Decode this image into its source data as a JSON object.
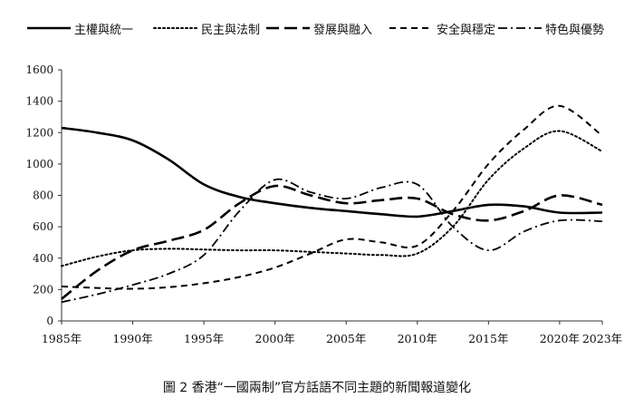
{
  "caption": "圖 2 香港“一國兩制”官方話語不同主題的新聞報道變化",
  "chart_data": {
    "type": "line",
    "title": "",
    "xlabel": "",
    "ylabel": "",
    "x": [
      1985,
      1987.5,
      1990,
      1992.5,
      1995,
      1997.5,
      2000,
      2002.5,
      2005,
      2007.5,
      2010,
      2012.5,
      2015,
      2017.5,
      2020,
      2023
    ],
    "x_ticks": [
      "1985年",
      "1990年",
      "1995年",
      "2000年",
      "2005年",
      "2010年",
      "2015年",
      "2020年",
      "2023年"
    ],
    "x_tick_values": [
      1985,
      1990,
      1995,
      2000,
      2005,
      2010,
      2015,
      2020,
      2023
    ],
    "y_ticks": [
      0,
      200,
      400,
      600,
      800,
      1000,
      1200,
      1400,
      1600
    ],
    "ylim": [
      0,
      1600
    ],
    "grid": false,
    "legend_position": "top",
    "series": [
      {
        "name": "主權與統一",
        "dash": "solid",
        "width": 2.6,
        "values": [
          1230,
          1200,
          1150,
          1030,
          870,
          790,
          750,
          720,
          700,
          680,
          665,
          700,
          740,
          730,
          690,
          690
        ]
      },
      {
        "name": "民主與法制",
        "dash": "dot",
        "width": 2.0,
        "values": [
          350,
          410,
          450,
          460,
          455,
          450,
          450,
          440,
          430,
          420,
          430,
          600,
          900,
          1100,
          1210,
          1080
        ]
      },
      {
        "name": "發展與融入",
        "dash": "longdash",
        "width": 2.6,
        "values": [
          140,
          320,
          450,
          510,
          580,
          750,
          860,
          800,
          750,
          770,
          780,
          680,
          640,
          700,
          800,
          740
        ]
      },
      {
        "name": "安全與穩定",
        "dash": "dash",
        "width": 2.0,
        "values": [
          220,
          210,
          205,
          215,
          240,
          280,
          340,
          430,
          520,
          500,
          480,
          700,
          1000,
          1220,
          1370,
          1180
        ]
      },
      {
        "name": "特色與優勢",
        "dash": "dashdot",
        "width": 1.8,
        "values": [
          120,
          170,
          230,
          300,
          420,
          700,
          900,
          820,
          780,
          850,
          870,
          600,
          450,
          570,
          640,
          635
        ]
      }
    ]
  }
}
